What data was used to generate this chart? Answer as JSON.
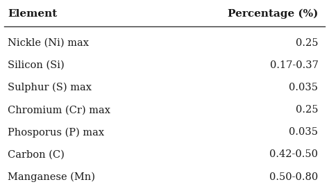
{
  "col1_header": "Element",
  "col2_header": "Percentage (%)",
  "rows": [
    [
      "Nickle (Ni) max",
      "0.25"
    ],
    [
      "Silicon (Si)",
      "0.17-0.37"
    ],
    [
      "Sulphur (S) max",
      "0.035"
    ],
    [
      "Chromium (Cr) max",
      "0.25"
    ],
    [
      "Phosporus (P) max",
      "0.035"
    ],
    [
      "Carbon (C)",
      "0.42-0.50"
    ],
    [
      "Manganese (Mn)",
      "0.50-0.80"
    ]
  ],
  "background_color": "#ffffff",
  "text_color": "#1a1a1a",
  "header_fontsize": 11,
  "row_fontsize": 10.5,
  "line_color": "#333333"
}
